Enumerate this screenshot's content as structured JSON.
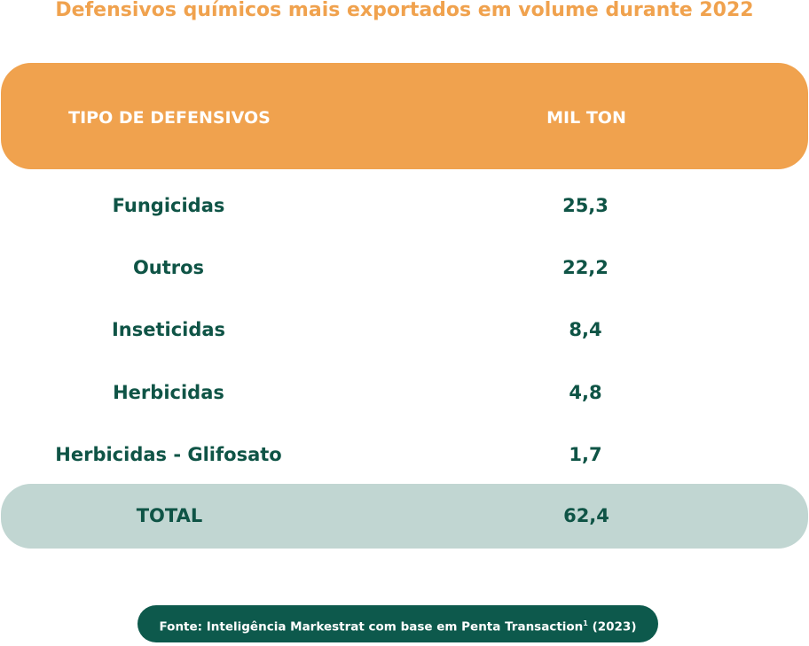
{
  "title": "Defensivos químicos mais exportados em volume durante 2022",
  "header": {
    "col1": "TIPO DE DEFENSIVOS",
    "col2": "MIL TON"
  },
  "rows": [
    {
      "type": "Fungicidas",
      "value": "25,3"
    },
    {
      "type": "Outros",
      "value": "22,2"
    },
    {
      "type": "Inseticidas",
      "value": "8,4"
    },
    {
      "type": "Herbicidas",
      "value": "4,8"
    },
    {
      "type": "Herbicidas - Glifosato",
      "value": "1,7"
    }
  ],
  "total": {
    "label": "TOTAL",
    "value": "62,4"
  },
  "source": {
    "text": "Fonte: Inteligência Markestrat com base em Penta Transaction",
    "sup": "1",
    "year": " (2023)"
  }
}
